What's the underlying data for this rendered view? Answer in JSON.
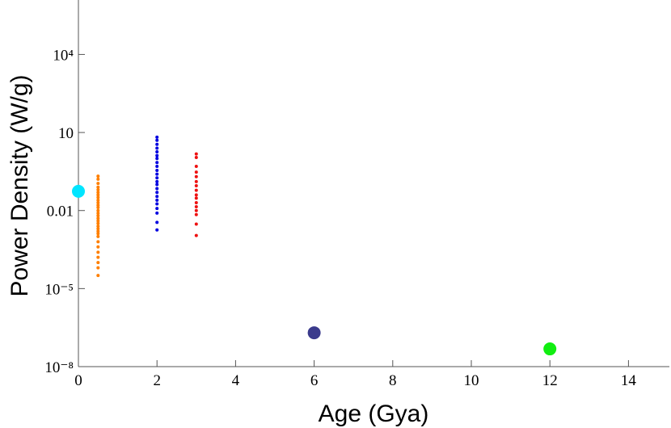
{
  "chart_data": {
    "type": "scatter",
    "xlabel": "Age (Gya)",
    "ylabel": "Power Density (W/g)",
    "log_y": true,
    "xlim": [
      0,
      15
    ],
    "xticks": [
      0,
      2,
      4,
      6,
      8,
      10,
      12,
      14
    ],
    "ylim": [
      1e-08,
      1000000
    ],
    "yticks": [
      {
        "value": 1e-08,
        "label": "10⁻⁸"
      },
      {
        "value": 1e-05,
        "label": "10⁻⁵"
      },
      0.01,
      10,
      {
        "value": 10000,
        "label": "10⁴"
      }
    ],
    "series": [
      {
        "color": "#00e5ff",
        "size": 8,
        "x": [
          0
        ],
        "values": [
          0.055
        ]
      },
      {
        "color": "#ff7f00",
        "size": 2,
        "x": [
          0.5,
          0.5,
          0.5,
          0.5,
          0.5,
          0.5,
          0.5,
          0.5,
          0.5,
          0.5,
          0.5,
          0.5,
          0.5,
          0.5,
          0.5,
          0.5,
          0.5,
          0.5,
          0.5,
          0.5,
          0.5,
          0.5,
          0.5,
          0.5,
          0.5,
          0.5,
          0.5,
          0.5,
          0.5,
          0.5
        ],
        "values": [
          0.21,
          0.16,
          0.11,
          0.079,
          0.063,
          0.05,
          0.04,
          0.032,
          0.025,
          0.02,
          0.016,
          0.013,
          0.01,
          0.0079,
          0.0063,
          0.005,
          0.004,
          0.0032,
          0.0025,
          0.002,
          0.0016,
          0.0013,
          0.001,
          0.00063,
          0.0004,
          0.00025,
          0.00016,
          0.0001,
          6.3e-05,
          3.2e-05
        ]
      },
      {
        "color": "#0000e0",
        "size": 2,
        "x": [
          2,
          2,
          2,
          2,
          2,
          2,
          2,
          2,
          2,
          2,
          2,
          2,
          2,
          2,
          2,
          2,
          2,
          2,
          2,
          2,
          2,
          2,
          2
        ],
        "values": [
          6.6,
          5.0,
          3.5,
          2.5,
          1.8,
          1.3,
          1.0,
          0.7,
          0.5,
          0.35,
          0.25,
          0.18,
          0.13,
          0.1,
          0.07,
          0.05,
          0.035,
          0.025,
          0.018,
          0.012,
          0.008,
          0.0035,
          0.0018
        ]
      },
      {
        "color": "#ee1111",
        "size": 2,
        "x": [
          3,
          3,
          3,
          3,
          3,
          3,
          3,
          3,
          3,
          3,
          3,
          3,
          3,
          3,
          3,
          3
        ],
        "values": [
          1.5,
          1.1,
          0.5,
          0.3,
          0.2,
          0.13,
          0.09,
          0.06,
          0.04,
          0.03,
          0.02,
          0.014,
          0.01,
          0.007,
          0.003,
          0.0011
        ]
      },
      {
        "color": "#3a3a8c",
        "size": 8,
        "x": [
          6
        ],
        "values": [
          2e-07
        ]
      },
      {
        "color": "#11ee11",
        "size": 8,
        "x": [
          12
        ],
        "values": [
          4.8e-08
        ]
      }
    ]
  }
}
